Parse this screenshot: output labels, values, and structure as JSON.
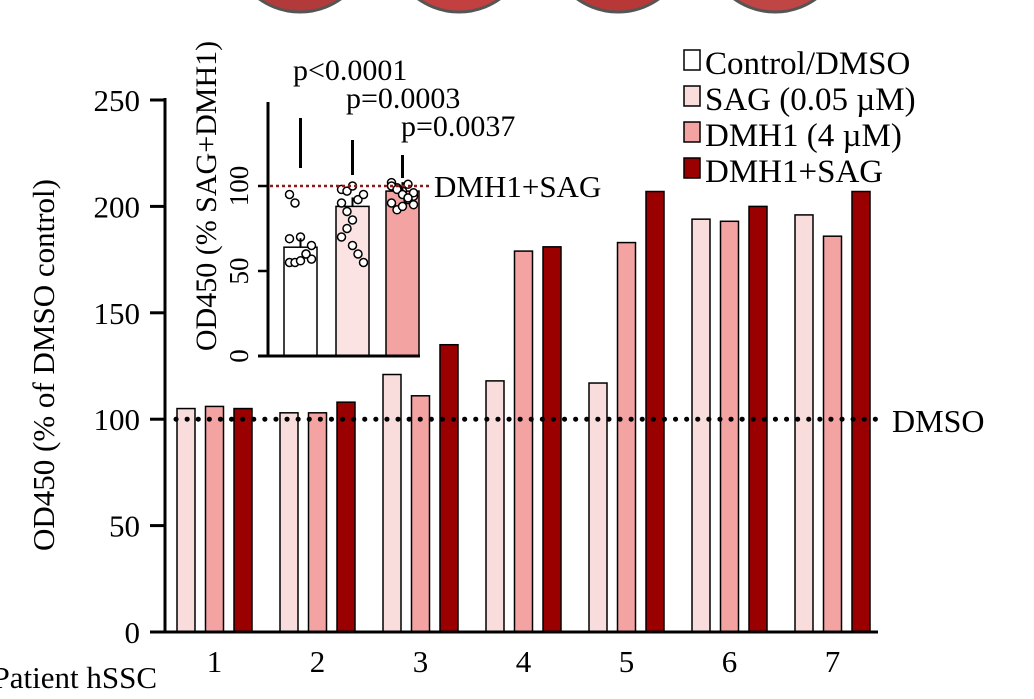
{
  "chart_data": [
    {
      "type": "bar",
      "xlabel": "Patient hSSC",
      "ylabel": "OD450 (% of DMSO control)",
      "categories": [
        "1",
        "2",
        "3",
        "4",
        "5",
        "6",
        "7"
      ],
      "ylim": [
        0,
        250
      ],
      "yticks": [
        "0",
        "50",
        "100",
        "150",
        "200",
        "250"
      ],
      "reference_line": {
        "value": 100,
        "label": "DMSO"
      },
      "series": [
        {
          "name": "SAG (0.05 µM)",
          "color": "#f9dcdc",
          "values": [
            105,
            103,
            121,
            118,
            117,
            194,
            196
          ]
        },
        {
          "name": "DMH1 (4 µM)",
          "color": "#f4a3a3",
          "values": [
            106,
            103,
            111,
            179,
            183,
            193,
            186
          ]
        },
        {
          "name": "DMH1+SAG",
          "color": "#9b0000",
          "values": [
            105,
            108,
            135,
            181,
            207,
            200,
            207
          ]
        }
      ],
      "legend": {
        "position": "top-right",
        "entries": [
          {
            "label": "Control/DMSO",
            "color": "#ffffff"
          },
          {
            "label": "SAG (0.05 µM)",
            "color": "#f9dcdc"
          },
          {
            "label": "DMH1 (4 µM)",
            "color": "#f4a3a3"
          },
          {
            "label": "DMH1+SAG",
            "color": "#9b0000"
          }
        ]
      }
    },
    {
      "type": "bar",
      "ylabel": "OD450 (% SAG+DMH1)",
      "categories": [
        "Control/DMSO",
        "SAG (0.05 µM)",
        "DMH1 (4 µM)"
      ],
      "colors": [
        "#ffffff",
        "#fbe3e3",
        "#f4a3a3"
      ],
      "values": [
        64,
        88,
        97
      ],
      "ylim": [
        0,
        150
      ],
      "yticks": [
        "0",
        "50",
        "100"
      ],
      "reference_line": {
        "value": 100,
        "label": "DMH1+SAG"
      },
      "pvalues": [
        "p<0.0001",
        "p=0.0003",
        "p=0.0037"
      ],
      "points": [
        [
          95,
          90,
          70,
          60,
          57,
          55,
          55,
          56,
          60,
          65,
          69
        ],
        [
          98,
          97,
          100,
          92,
          95,
          90,
          75,
          65,
          60,
          55,
          70,
          85,
          80
        ],
        [
          102,
          99,
          97,
          101,
          94,
          90,
          86,
          88,
          92,
          96,
          100,
          98,
          95,
          93,
          89
        ]
      ]
    }
  ]
}
